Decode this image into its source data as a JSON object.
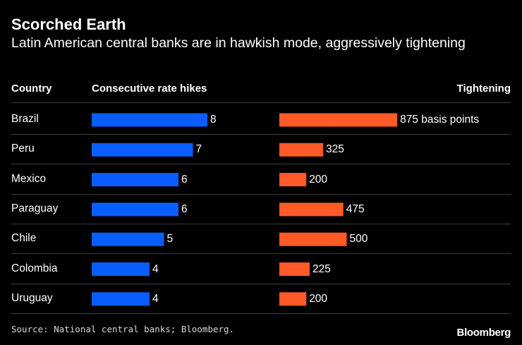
{
  "header": {
    "title": "Scorched Earth",
    "subtitle": "Latin American central banks are in hawkish mode, aggressively tightening"
  },
  "columns": {
    "country": "Country",
    "hikes": "Consecutive rate hikes",
    "tightening": "Tightening"
  },
  "chart_data": {
    "type": "bar",
    "categories": [
      "Brazil",
      "Peru",
      "Mexico",
      "Paraguay",
      "Chile",
      "Colombia",
      "Uruguay"
    ],
    "series": [
      {
        "name": "Consecutive rate hikes",
        "values": [
          8,
          7,
          6,
          6,
          5,
          4,
          4
        ],
        "labels": [
          "8",
          "7",
          "6",
          "6",
          "5",
          "4",
          "4"
        ],
        "color": "#0a5eff"
      },
      {
        "name": "Tightening",
        "values": [
          875,
          325,
          200,
          475,
          500,
          225,
          200
        ],
        "labels": [
          "875 basis points",
          "325",
          "200",
          "475",
          "500",
          "225",
          "200"
        ],
        "color": "#ff5a27"
      }
    ]
  },
  "footer": {
    "source": "Source: National central banks; Bloomberg.",
    "logo": "Bloomberg"
  }
}
